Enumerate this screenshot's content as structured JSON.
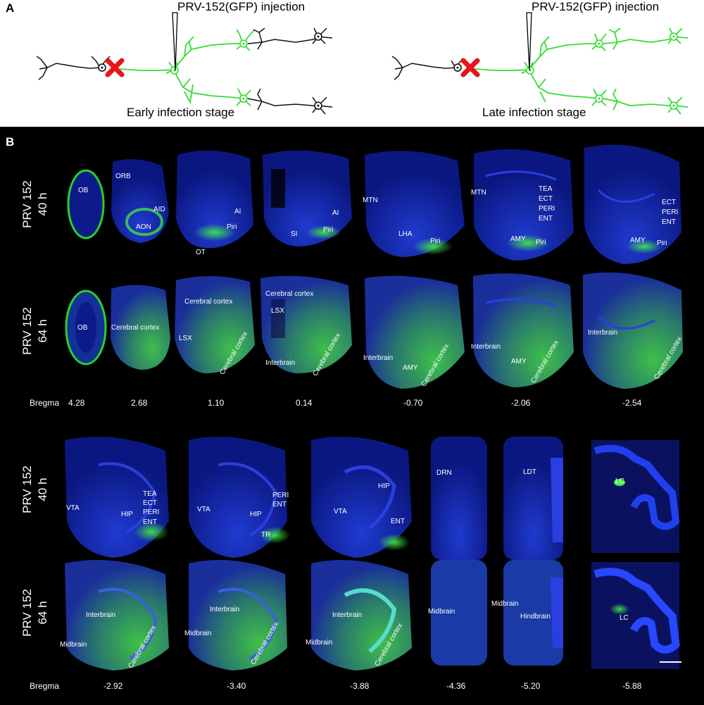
{
  "panel_a": {
    "letter": "A",
    "injection_label": "PRV-152(GFP) injection",
    "early_label": "Early infection stage",
    "late_label": "Late infection stage"
  },
  "panel_b": {
    "letter": "B",
    "bregma_label": "Bregma",
    "rows": {
      "r40": "PRV 152\n40 h",
      "r64": "PRV 152\n64 h"
    },
    "bregma_top": [
      "4.28",
      "2.68",
      "1.10",
      "0.14",
      "-0.70",
      "-2.06",
      "-2.54"
    ],
    "bregma_bottom": [
      "-2.92",
      "-3.40",
      "-3.88",
      "-4.36",
      "-5.20",
      "-5.88"
    ],
    "labels": {
      "ob": "OB",
      "orb": "ORB",
      "aid": "AID",
      "aon": "AON",
      "ai": "AI",
      "piri": "Piri",
      "ot": "OT",
      "si": "SI",
      "mtn": "MTN",
      "lha": "LHA",
      "tea": "TEA",
      "ect": "ECT",
      "peri": "PERI",
      "ent": "ENT",
      "amy": "AMY",
      "cc": "Cerebral cortex",
      "lsx": "LSX",
      "interbrain": "Interbrain",
      "vta": "VTA",
      "hip": "HIP",
      "tr": "TR",
      "drn": "DRN",
      "ldt": "LDT",
      "lc": "LC",
      "midbrain": "Midbrain",
      "hindbrain": "Hindbrain"
    }
  },
  "colors": {
    "gfp": "#33dd33",
    "dapi": "#1a2fd6",
    "background": "#000000",
    "marker": "#e8141b"
  }
}
